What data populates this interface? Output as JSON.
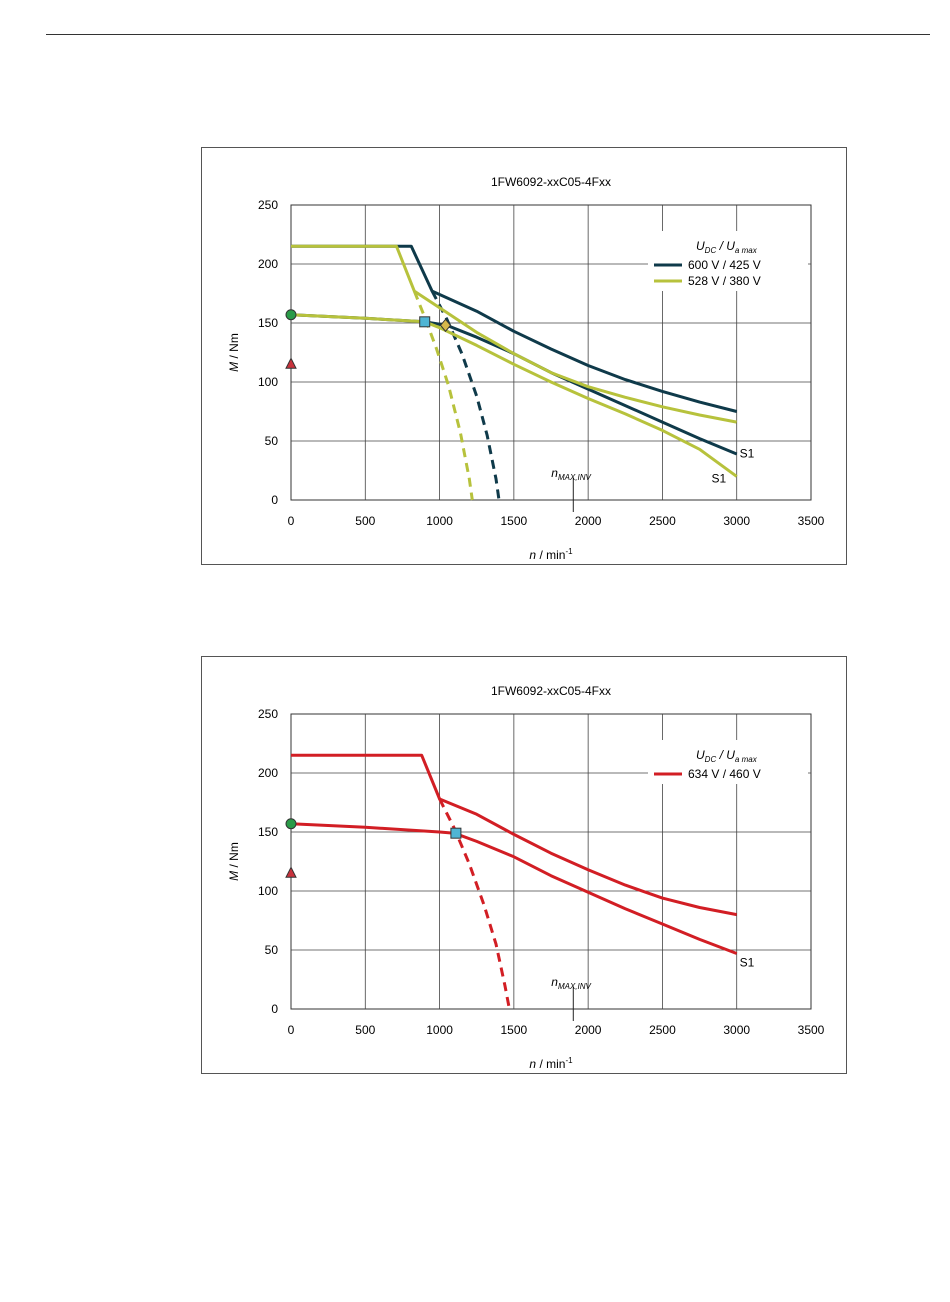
{
  "chart_data": [
    {
      "type": "line",
      "title": "1FW6092-xxC05-4Fxx",
      "xlabel": "n / min⁻¹",
      "ylabel": "M / Nm",
      "xlim": [
        0,
        3500
      ],
      "ylim": [
        0,
        250
      ],
      "xticks": [
        0,
        500,
        1000,
        1500,
        2000,
        2500,
        3000,
        3500
      ],
      "yticks": [
        0,
        50,
        100,
        150,
        200,
        250
      ],
      "grid": true,
      "legend_position": "top-right",
      "legend_title": "UDC / Ua max",
      "series": [
        {
          "name": "600 V / 425 V",
          "color": "#0f3a4a",
          "style": "solid",
          "x": [
            0,
            810,
            950,
            1250,
            1500,
            1750,
            2000,
            2250,
            2500,
            2750,
            3000
          ],
          "y": [
            215,
            215,
            177,
            160,
            143,
            128,
            114,
            102,
            92,
            83,
            75
          ]
        },
        {
          "name": "",
          "color": "#0f3a4a",
          "style": "solid",
          "x": [
            0,
            500,
            900,
            1050,
            1250,
            1500,
            1750,
            2000,
            2250,
            2500,
            2750,
            3000
          ],
          "y": [
            157,
            154,
            151,
            148,
            138,
            124,
            108,
            94,
            80,
            66,
            52,
            39
          ]
        },
        {
          "name": "",
          "color": "#0f3a4a",
          "style": "dashed",
          "x": [
            950,
            1050,
            1150,
            1250,
            1320,
            1380,
            1400
          ],
          "y": [
            177,
            153,
            124,
            88,
            55,
            18,
            0
          ]
        },
        {
          "name": "528 V / 380 V",
          "color": "#b7c23c",
          "style": "solid",
          "x": [
            0,
            710,
            830,
            1000,
            1250,
            1500,
            1750,
            2000,
            2250,
            2500,
            2750,
            3000
          ],
          "y": [
            215,
            215,
            177,
            163,
            142,
            124,
            108,
            96,
            87,
            79,
            72,
            66
          ]
        },
        {
          "name": "",
          "color": "#b7c23c",
          "style": "solid",
          "x": [
            0,
            500,
            900,
            1000,
            1250,
            1500,
            1750,
            2000,
            2250,
            2500,
            2750,
            3000
          ],
          "y": [
            157,
            154,
            151,
            146,
            131,
            115,
            100,
            86,
            73,
            59,
            43,
            20
          ]
        },
        {
          "name": "",
          "color": "#b7c23c",
          "style": "dashed",
          "x": [
            830,
            900,
            980,
            1060,
            1140,
            1200,
            1220
          ],
          "y": [
            177,
            155,
            128,
            97,
            57,
            18,
            0
          ]
        }
      ],
      "markers": [
        {
          "type": "circle",
          "color": "#2a9b48",
          "x": 0,
          "y": 157
        },
        {
          "type": "triangle",
          "color": "#c8323c",
          "x": 0,
          "y": 115
        },
        {
          "type": "square",
          "color": "#4fb5d4",
          "x": 900,
          "y": 151
        },
        {
          "type": "diamond",
          "color": "#d6b84c",
          "x": 1040,
          "y": 148
        }
      ],
      "annotations": [
        {
          "text": "S1",
          "x": 3020,
          "y": 36
        },
        {
          "text": "S1",
          "x": 2830,
          "y": 15
        },
        {
          "text": "n_MAX,INV",
          "x": 1900,
          "y": 16
        }
      ],
      "nmax_line_x": 1900
    },
    {
      "type": "line",
      "title": "1FW6092-xxC05-4Fxx",
      "xlabel": "n / min⁻¹",
      "ylabel": "M / Nm",
      "xlim": [
        0,
        3500
      ],
      "ylim": [
        0,
        250
      ],
      "xticks": [
        0,
        500,
        1000,
        1500,
        2000,
        2500,
        3000,
        3500
      ],
      "yticks": [
        0,
        50,
        100,
        150,
        200,
        250
      ],
      "grid": true,
      "legend_position": "top-right",
      "legend_title": "UDC / Ua max",
      "series": [
        {
          "name": "634 V / 460 V",
          "color": "#d21e24",
          "style": "solid",
          "x": [
            0,
            880,
            1000,
            1250,
            1500,
            1750,
            2000,
            2250,
            2500,
            2750,
            3000
          ],
          "y": [
            215,
            215,
            178,
            165,
            148,
            132,
            118,
            105,
            94,
            86,
            80
          ]
        },
        {
          "name": "",
          "color": "#d21e24",
          "style": "solid",
          "x": [
            0,
            500,
            1000,
            1100,
            1250,
            1500,
            1750,
            2000,
            2250,
            2500,
            2750,
            3000
          ],
          "y": [
            157,
            154,
            150,
            149,
            142,
            129,
            113,
            99,
            85,
            72,
            59,
            47
          ]
        },
        {
          "name": "",
          "color": "#d21e24",
          "style": "dashed",
          "x": [
            1000,
            1100,
            1200,
            1300,
            1380,
            1440,
            1470
          ],
          "y": [
            178,
            153,
            123,
            88,
            55,
            20,
            0
          ]
        }
      ],
      "markers": [
        {
          "type": "circle",
          "color": "#2a9b48",
          "x": 0,
          "y": 157
        },
        {
          "type": "triangle",
          "color": "#c8323c",
          "x": 0,
          "y": 115
        },
        {
          "type": "square",
          "color": "#4fb5d4",
          "x": 1110,
          "y": 149
        }
      ],
      "annotations": [
        {
          "text": "S1",
          "x": 3020,
          "y": 36
        },
        {
          "text": "n_MAX,INV",
          "x": 1900,
          "y": 16
        }
      ],
      "nmax_line_x": 1900
    }
  ]
}
